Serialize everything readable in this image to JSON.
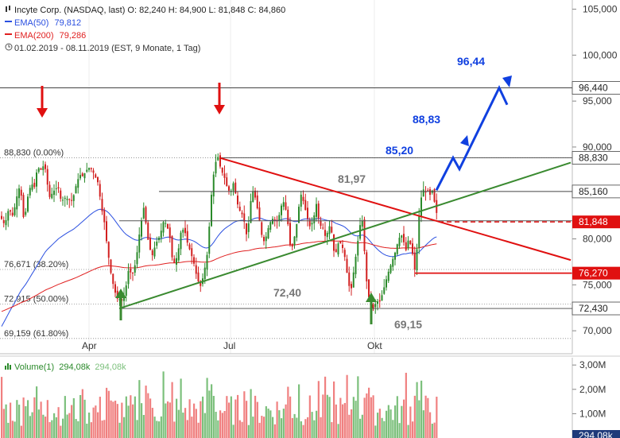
{
  "header": {
    "title_line": "Incyte Corp. (NASDAQ, last)  O: 82,240  H: 84,900  L: 81,848  C: 84,860",
    "ema50_label": "EMA(50)",
    "ema50_value": "79,812",
    "ema200_label": "EMA(200)",
    "ema200_value": "79,286",
    "period": "01.02.2019 - 08.11.2019    (EST, 9 Monate, 1 Tag)",
    "volume_label": "Volume(1)",
    "volume_value1": "294,08k",
    "volume_value2": "294,08k"
  },
  "colors": {
    "ema50": "#2a4fe0",
    "ema200": "#e02020",
    "up_candle": "#2a8a2a",
    "down_candle": "#d22020",
    "trend_red": "#e01010",
    "trend_green": "#3a8a30",
    "target_blue": "#1040e0",
    "vol_up": "#7cc07c",
    "vol_down": "#f08080"
  },
  "chart_data": {
    "type": "candlestick",
    "x_axis_ticks": [
      "Apr",
      "Jul",
      "Okt"
    ],
    "y_axis_ticks": [
      "105,000",
      "100,000",
      "95,000",
      "90,000",
      "85,000",
      "80,000",
      "75,000",
      "70,000"
    ],
    "ylim": [
      67.5,
      106
    ],
    "price_tags": [
      {
        "label": "96,440",
        "value": 96.44,
        "style": "plain"
      },
      {
        "label": "88,830",
        "value": 88.83,
        "style": "plain"
      },
      {
        "label": "85,160",
        "value": 85.16,
        "style": "plain"
      },
      {
        "label": "81,848",
        "value": 81.848,
        "style": "red"
      },
      {
        "label": "76,270",
        "value": 76.27,
        "style": "red"
      },
      {
        "label": "72,430",
        "value": 72.43,
        "style": "plain"
      }
    ],
    "fib_levels": [
      {
        "label": "88,830 (0.00%)",
        "value": 88.83
      },
      {
        "label": "76,671 (38.20%)",
        "value": 76.671
      },
      {
        "label": "72,915 (50.00%)",
        "value": 72.915
      },
      {
        "label": "69,159 (61.80%)",
        "value": 69.159
      }
    ],
    "annotations": [
      {
        "text": "96,44",
        "color": "blue"
      },
      {
        "text": "88,83",
        "color": "blue"
      },
      {
        "text": "85,20",
        "color": "blue"
      },
      {
        "text": "81,97",
        "color": "gray"
      },
      {
        "text": "72,40",
        "color": "gray"
      },
      {
        "text": "69,15",
        "color": "gray"
      }
    ],
    "volume_axis_ticks": [
      "3,00M",
      "2,00M",
      "1,00M"
    ],
    "volume_last_tag": "294,08k",
    "volume_ylim": [
      0,
      3.3
    ]
  }
}
